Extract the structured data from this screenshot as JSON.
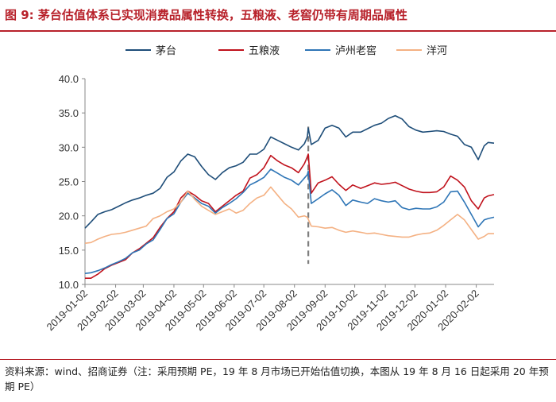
{
  "header": {
    "title": "图 9:  茅台估值体系已实现消费品属性转换，五粮液、老窖仍带有周期品属性"
  },
  "footer": {
    "source": "资料来源：wind、招商证券（注：采用预期 PE，19 年 8 月市场已开始估值切换，本图从 19 年 8 月 16 日起采用 20 年预期 PE）"
  },
  "chart_data": {
    "type": "line",
    "title": "",
    "xlabel": "",
    "ylabel": "",
    "ylim": [
      10.0,
      40.0
    ],
    "yticks": [
      "10.0",
      "15.0",
      "20.0",
      "25.0",
      "30.0",
      "35.0",
      "40.0"
    ],
    "xticks": [
      "2019-01-02",
      "2019-02-02",
      "2019-03-02",
      "2019-04-02",
      "2019-05-02",
      "2019-06-02",
      "2019-07-02",
      "2019-08-02",
      "2019-09-02",
      "2019-10-02",
      "2019-11-02",
      "2019-12-02",
      "2020-01-02",
      "2020-02-02"
    ],
    "xrange": [
      "2019-01-02",
      "2020-02-20"
    ],
    "legend_position": "top",
    "grid": false,
    "marker": {
      "date": "2019-08-16",
      "style": "dashed",
      "color": "#7f7f7f",
      "ymin": 13.0,
      "ymax": 33.0
    },
    "series": [
      {
        "name": "茅台",
        "color": "#1f4e79",
        "points": [
          [
            "2019-01-02",
            18.2
          ],
          [
            "2019-01-08",
            19.1
          ],
          [
            "2019-01-15",
            20.2
          ],
          [
            "2019-01-22",
            20.6
          ],
          [
            "2019-01-29",
            20.9
          ],
          [
            "2019-02-05",
            21.4
          ],
          [
            "2019-02-12",
            21.9
          ],
          [
            "2019-02-19",
            22.3
          ],
          [
            "2019-02-26",
            22.6
          ],
          [
            "2019-03-05",
            23.0
          ],
          [
            "2019-03-12",
            23.3
          ],
          [
            "2019-03-19",
            24.0
          ],
          [
            "2019-03-26",
            25.6
          ],
          [
            "2019-04-02",
            26.4
          ],
          [
            "2019-04-09",
            28.0
          ],
          [
            "2019-04-16",
            29.0
          ],
          [
            "2019-04-23",
            28.6
          ],
          [
            "2019-04-30",
            27.2
          ],
          [
            "2019-05-07",
            26.0
          ],
          [
            "2019-05-14",
            25.3
          ],
          [
            "2019-05-21",
            26.3
          ],
          [
            "2019-05-28",
            27.0
          ],
          [
            "2019-06-04",
            27.3
          ],
          [
            "2019-06-11",
            27.8
          ],
          [
            "2019-06-18",
            29.0
          ],
          [
            "2019-06-25",
            29.0
          ],
          [
            "2019-07-02",
            29.7
          ],
          [
            "2019-07-09",
            31.5
          ],
          [
            "2019-07-16",
            31.0
          ],
          [
            "2019-07-23",
            30.5
          ],
          [
            "2019-07-30",
            30.0
          ],
          [
            "2019-08-06",
            29.6
          ],
          [
            "2019-08-12",
            30.5
          ],
          [
            "2019-08-15",
            31.5
          ],
          [
            "2019-08-16",
            32.8
          ],
          [
            "2019-08-19",
            30.4
          ],
          [
            "2019-08-26",
            31.0
          ],
          [
            "2019-09-02",
            32.8
          ],
          [
            "2019-09-09",
            33.2
          ],
          [
            "2019-09-16",
            32.8
          ],
          [
            "2019-09-23",
            31.5
          ],
          [
            "2019-09-30",
            32.2
          ],
          [
            "2019-10-08",
            32.2
          ],
          [
            "2019-10-15",
            32.7
          ],
          [
            "2019-10-22",
            33.2
          ],
          [
            "2019-10-29",
            33.5
          ],
          [
            "2019-11-05",
            34.2
          ],
          [
            "2019-11-12",
            34.6
          ],
          [
            "2019-11-19",
            34.1
          ],
          [
            "2019-11-26",
            33.0
          ],
          [
            "2019-12-03",
            32.5
          ],
          [
            "2019-12-10",
            32.2
          ],
          [
            "2019-12-17",
            32.3
          ],
          [
            "2019-12-24",
            32.4
          ],
          [
            "2019-12-31",
            32.3
          ],
          [
            "2020-01-07",
            31.9
          ],
          [
            "2020-01-14",
            31.6
          ],
          [
            "2020-01-21",
            30.4
          ],
          [
            "2020-01-28",
            30.0
          ],
          [
            "2020-02-04",
            28.2
          ],
          [
            "2020-02-10",
            30.2
          ],
          [
            "2020-02-14",
            30.7
          ],
          [
            "2020-02-20",
            30.6
          ]
        ]
      },
      {
        "name": "五粮液",
        "color": "#c0121c",
        "points": [
          [
            "2019-01-02",
            10.9
          ],
          [
            "2019-01-08",
            10.9
          ],
          [
            "2019-01-15",
            11.5
          ],
          [
            "2019-01-22",
            12.3
          ],
          [
            "2019-01-29",
            12.8
          ],
          [
            "2019-02-05",
            13.2
          ],
          [
            "2019-02-12",
            13.6
          ],
          [
            "2019-02-19",
            14.6
          ],
          [
            "2019-02-26",
            15.2
          ],
          [
            "2019-03-05",
            16.0
          ],
          [
            "2019-03-12",
            16.8
          ],
          [
            "2019-03-19",
            18.3
          ],
          [
            "2019-03-26",
            19.6
          ],
          [
            "2019-04-02",
            20.6
          ],
          [
            "2019-04-09",
            22.6
          ],
          [
            "2019-04-16",
            23.6
          ],
          [
            "2019-04-23",
            23.0
          ],
          [
            "2019-04-30",
            22.2
          ],
          [
            "2019-05-07",
            21.8
          ],
          [
            "2019-05-14",
            20.6
          ],
          [
            "2019-05-21",
            21.4
          ],
          [
            "2019-05-28",
            22.2
          ],
          [
            "2019-06-04",
            23.0
          ],
          [
            "2019-06-11",
            23.6
          ],
          [
            "2019-06-18",
            25.5
          ],
          [
            "2019-06-25",
            26.0
          ],
          [
            "2019-07-02",
            27.0
          ],
          [
            "2019-07-09",
            28.8
          ],
          [
            "2019-07-16",
            28.0
          ],
          [
            "2019-07-23",
            27.4
          ],
          [
            "2019-07-30",
            27.0
          ],
          [
            "2019-08-06",
            26.3
          ],
          [
            "2019-08-12",
            27.6
          ],
          [
            "2019-08-15",
            28.6
          ],
          [
            "2019-08-16",
            29.0
          ],
          [
            "2019-08-19",
            23.3
          ],
          [
            "2019-08-26",
            24.8
          ],
          [
            "2019-09-02",
            25.2
          ],
          [
            "2019-09-09",
            25.7
          ],
          [
            "2019-09-16",
            24.6
          ],
          [
            "2019-09-23",
            23.7
          ],
          [
            "2019-09-30",
            24.5
          ],
          [
            "2019-10-08",
            24.0
          ],
          [
            "2019-10-15",
            24.4
          ],
          [
            "2019-10-22",
            24.8
          ],
          [
            "2019-10-29",
            24.6
          ],
          [
            "2019-11-05",
            24.7
          ],
          [
            "2019-11-12",
            24.9
          ],
          [
            "2019-11-19",
            24.4
          ],
          [
            "2019-11-26",
            23.9
          ],
          [
            "2019-12-03",
            23.6
          ],
          [
            "2019-12-10",
            23.4
          ],
          [
            "2019-12-17",
            23.4
          ],
          [
            "2019-12-24",
            23.5
          ],
          [
            "2019-12-31",
            24.2
          ],
          [
            "2020-01-07",
            25.8
          ],
          [
            "2020-01-14",
            25.2
          ],
          [
            "2020-01-21",
            24.2
          ],
          [
            "2020-01-28",
            22.2
          ],
          [
            "2020-02-04",
            21.0
          ],
          [
            "2020-02-10",
            22.6
          ],
          [
            "2020-02-14",
            22.9
          ],
          [
            "2020-02-20",
            23.1
          ]
        ]
      },
      {
        "name": "泸州老窖",
        "color": "#2e75b6",
        "points": [
          [
            "2019-01-02",
            11.6
          ],
          [
            "2019-01-08",
            11.7
          ],
          [
            "2019-01-15",
            12.0
          ],
          [
            "2019-01-22",
            12.4
          ],
          [
            "2019-01-29",
            12.9
          ],
          [
            "2019-02-05",
            13.3
          ],
          [
            "2019-02-12",
            13.8
          ],
          [
            "2019-02-19",
            14.6
          ],
          [
            "2019-02-26",
            15.0
          ],
          [
            "2019-03-05",
            15.9
          ],
          [
            "2019-03-12",
            16.5
          ],
          [
            "2019-03-19",
            18.0
          ],
          [
            "2019-03-26",
            19.6
          ],
          [
            "2019-04-02",
            20.3
          ],
          [
            "2019-04-09",
            22.0
          ],
          [
            "2019-04-16",
            23.3
          ],
          [
            "2019-04-23",
            22.6
          ],
          [
            "2019-04-30",
            21.8
          ],
          [
            "2019-05-07",
            21.4
          ],
          [
            "2019-05-14",
            20.4
          ],
          [
            "2019-05-21",
            21.2
          ],
          [
            "2019-05-28",
            21.8
          ],
          [
            "2019-06-04",
            22.5
          ],
          [
            "2019-06-11",
            23.4
          ],
          [
            "2019-06-18",
            24.5
          ],
          [
            "2019-06-25",
            25.0
          ],
          [
            "2019-07-02",
            25.6
          ],
          [
            "2019-07-09",
            26.8
          ],
          [
            "2019-07-16",
            26.2
          ],
          [
            "2019-07-23",
            25.6
          ],
          [
            "2019-07-30",
            25.2
          ],
          [
            "2019-08-06",
            24.5
          ],
          [
            "2019-08-12",
            25.5
          ],
          [
            "2019-08-15",
            26.0
          ],
          [
            "2019-08-16",
            26.5
          ],
          [
            "2019-08-19",
            21.8
          ],
          [
            "2019-08-26",
            22.5
          ],
          [
            "2019-09-02",
            23.2
          ],
          [
            "2019-09-09",
            23.8
          ],
          [
            "2019-09-16",
            23.0
          ],
          [
            "2019-09-23",
            21.5
          ],
          [
            "2019-09-30",
            22.3
          ],
          [
            "2019-10-08",
            22.0
          ],
          [
            "2019-10-15",
            21.8
          ],
          [
            "2019-10-22",
            22.5
          ],
          [
            "2019-10-29",
            22.2
          ],
          [
            "2019-11-05",
            22.0
          ],
          [
            "2019-11-12",
            22.2
          ],
          [
            "2019-11-19",
            21.2
          ],
          [
            "2019-11-26",
            20.9
          ],
          [
            "2019-12-03",
            21.1
          ],
          [
            "2019-12-10",
            21.0
          ],
          [
            "2019-12-17",
            21.0
          ],
          [
            "2019-12-24",
            21.3
          ],
          [
            "2019-12-31",
            22.0
          ],
          [
            "2020-01-07",
            23.5
          ],
          [
            "2020-01-14",
            23.6
          ],
          [
            "2020-01-21",
            22.0
          ],
          [
            "2020-01-28",
            20.2
          ],
          [
            "2020-02-04",
            18.4
          ],
          [
            "2020-02-10",
            19.4
          ],
          [
            "2020-02-14",
            19.6
          ],
          [
            "2020-02-20",
            19.8
          ]
        ]
      },
      {
        "name": "洋河",
        "color": "#f4b183",
        "points": [
          [
            "2019-01-02",
            16.0
          ],
          [
            "2019-01-08",
            16.1
          ],
          [
            "2019-01-15",
            16.6
          ],
          [
            "2019-01-22",
            17.0
          ],
          [
            "2019-01-29",
            17.3
          ],
          [
            "2019-02-05",
            17.4
          ],
          [
            "2019-02-12",
            17.6
          ],
          [
            "2019-02-19",
            17.9
          ],
          [
            "2019-02-26",
            18.2
          ],
          [
            "2019-03-05",
            18.5
          ],
          [
            "2019-03-12",
            19.6
          ],
          [
            "2019-03-19",
            20.0
          ],
          [
            "2019-03-26",
            20.6
          ],
          [
            "2019-04-02",
            21.0
          ],
          [
            "2019-04-09",
            22.0
          ],
          [
            "2019-04-16",
            23.6
          ],
          [
            "2019-04-23",
            22.4
          ],
          [
            "2019-04-30",
            21.4
          ],
          [
            "2019-05-07",
            20.8
          ],
          [
            "2019-05-14",
            20.2
          ],
          [
            "2019-05-21",
            20.6
          ],
          [
            "2019-05-28",
            21.0
          ],
          [
            "2019-06-04",
            20.4
          ],
          [
            "2019-06-11",
            20.8
          ],
          [
            "2019-06-18",
            21.8
          ],
          [
            "2019-06-25",
            22.6
          ],
          [
            "2019-07-02",
            23.0
          ],
          [
            "2019-07-09",
            24.2
          ],
          [
            "2019-07-16",
            23.0
          ],
          [
            "2019-07-23",
            21.8
          ],
          [
            "2019-07-30",
            21.0
          ],
          [
            "2019-08-06",
            19.8
          ],
          [
            "2019-08-12",
            20.0
          ],
          [
            "2019-08-15",
            19.8
          ],
          [
            "2019-08-16",
            19.5
          ],
          [
            "2019-08-19",
            18.5
          ],
          [
            "2019-08-26",
            18.4
          ],
          [
            "2019-09-02",
            18.2
          ],
          [
            "2019-09-09",
            18.3
          ],
          [
            "2019-09-16",
            17.9
          ],
          [
            "2019-09-23",
            17.6
          ],
          [
            "2019-09-30",
            17.8
          ],
          [
            "2019-10-08",
            17.6
          ],
          [
            "2019-10-15",
            17.4
          ],
          [
            "2019-10-22",
            17.5
          ],
          [
            "2019-10-29",
            17.3
          ],
          [
            "2019-11-05",
            17.1
          ],
          [
            "2019-11-12",
            17.0
          ],
          [
            "2019-11-19",
            16.9
          ],
          [
            "2019-11-26",
            16.9
          ],
          [
            "2019-12-03",
            17.2
          ],
          [
            "2019-12-10",
            17.4
          ],
          [
            "2019-12-17",
            17.5
          ],
          [
            "2019-12-24",
            17.9
          ],
          [
            "2019-12-31",
            18.6
          ],
          [
            "2020-01-07",
            19.4
          ],
          [
            "2020-01-14",
            20.2
          ],
          [
            "2020-01-21",
            19.4
          ],
          [
            "2020-01-28",
            18.0
          ],
          [
            "2020-02-04",
            16.6
          ],
          [
            "2020-02-10",
            17.0
          ],
          [
            "2020-02-14",
            17.4
          ],
          [
            "2020-02-20",
            17.4
          ]
        ]
      }
    ]
  }
}
